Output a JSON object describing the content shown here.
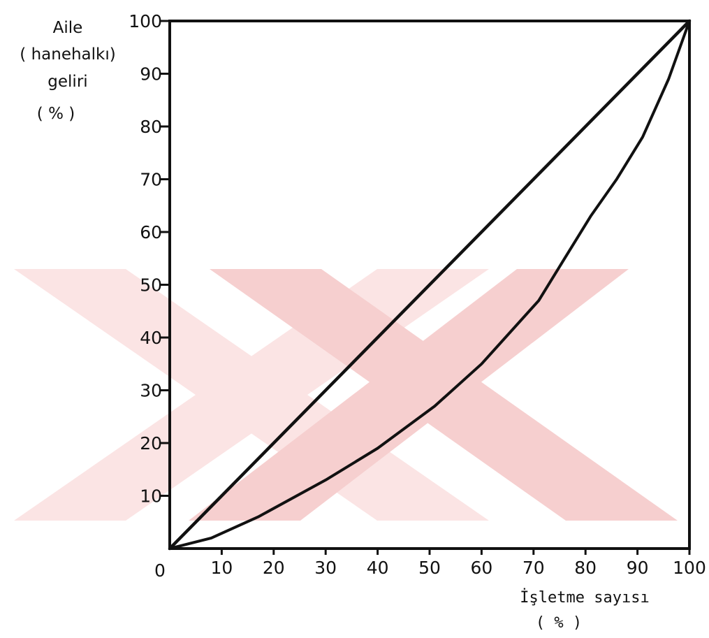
{
  "chart_data": {
    "type": "line",
    "title": "",
    "xlabel": [
      "İşletme sayısı",
      "( % )"
    ],
    "ylabel": [
      "Aile",
      "( hanehalkı)",
      "geliri",
      "( % )"
    ],
    "xlim": [
      0,
      100
    ],
    "ylim": [
      0,
      100
    ],
    "grid": false,
    "frame": true,
    "origin_label": "0",
    "x_ticks": [
      "10",
      "20",
      "30",
      "40",
      "50",
      "60",
      "70",
      "80",
      "90",
      "100"
    ],
    "y_ticks": [
      "10",
      "20",
      "30",
      "40",
      "50",
      "60",
      "70",
      "80",
      "90",
      "100"
    ],
    "series": [
      {
        "x": [
          0,
          100
        ],
        "y": [
          0,
          100
        ],
        "stroke_color": "#111111"
      },
      {
        "x": [
          0,
          8,
          17,
          30,
          40,
          51,
          60,
          71,
          76,
          81,
          86,
          91,
          96,
          100
        ],
        "y": [
          0,
          2,
          6,
          13,
          19,
          27,
          35,
          47,
          55,
          63,
          70,
          78,
          89,
          100
        ],
        "stroke_color": "#111111"
      }
    ],
    "watermark_colors": [
      "#fbe4e4",
      "#f6cfcf"
    ]
  }
}
